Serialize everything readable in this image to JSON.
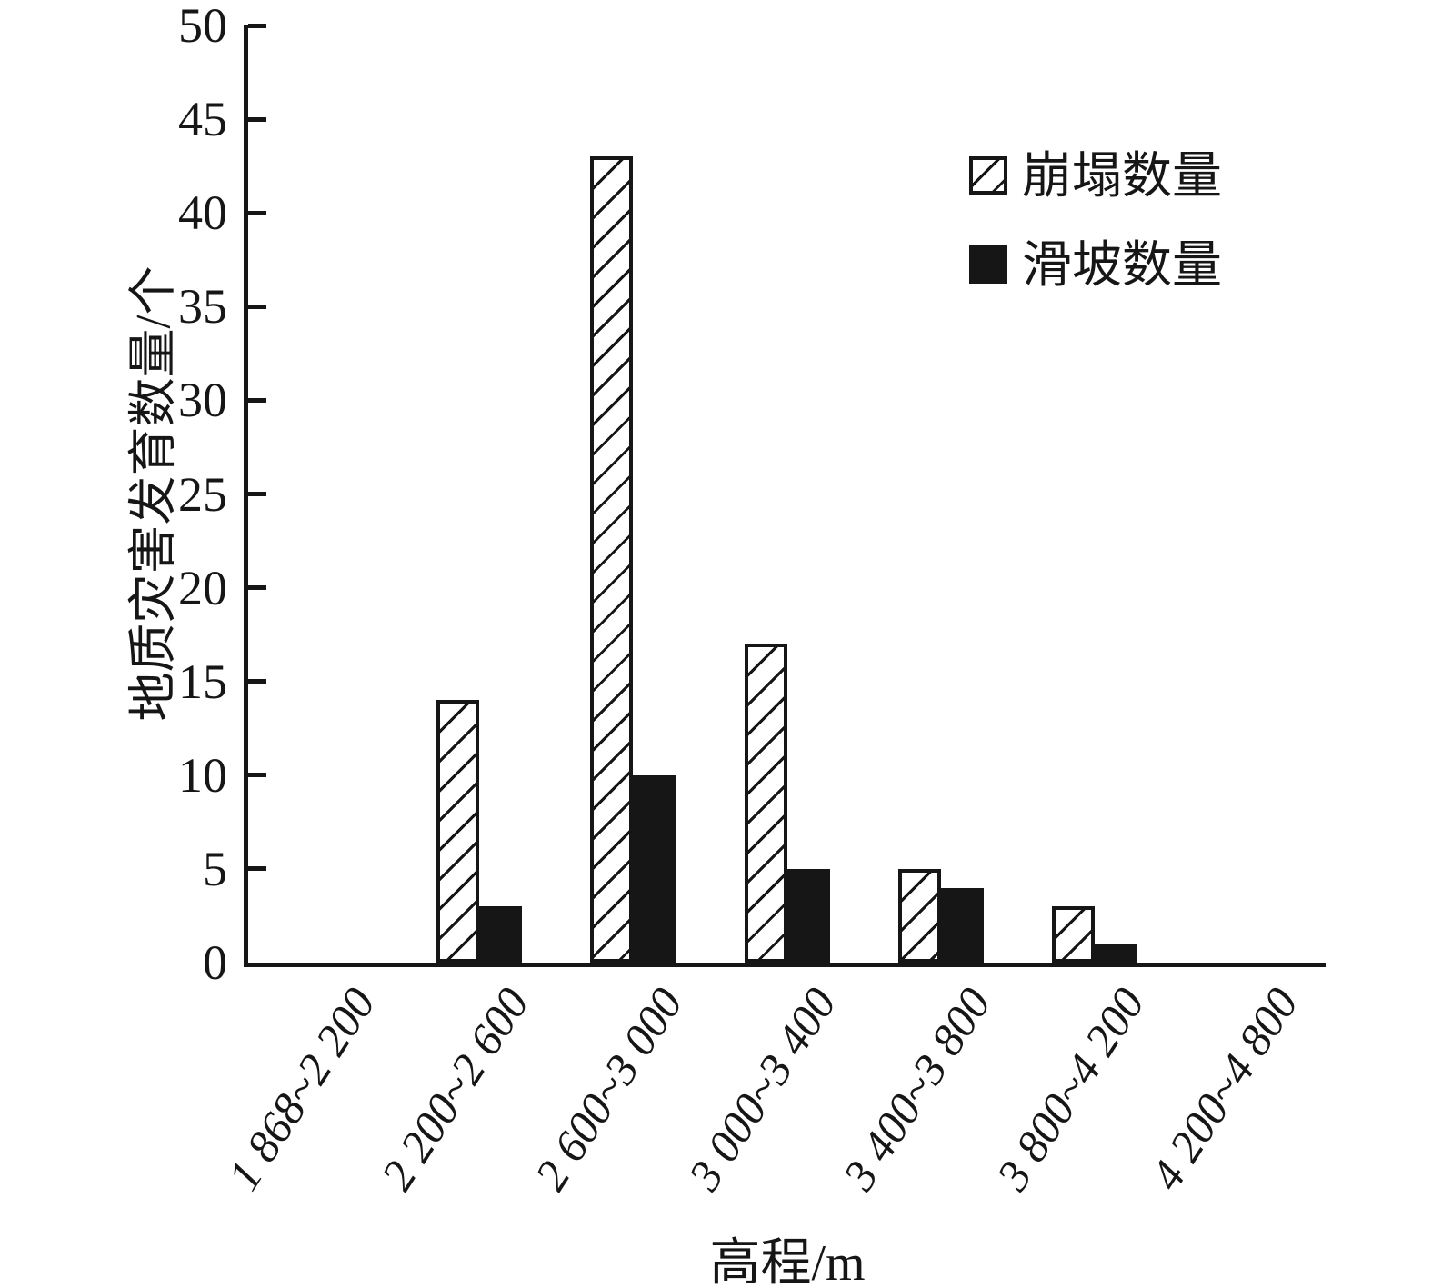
{
  "chart_data": {
    "type": "bar",
    "title": "",
    "categories": [
      "1 868~2 200",
      "2 200~2 600",
      "2 600~3 000",
      "3 000~3 400",
      "3 400~3 800",
      "3 800~4 200",
      "4 200~4 800"
    ],
    "series": [
      {
        "name": "崩塌数量",
        "style": "hatched",
        "values": [
          0,
          14,
          43,
          17,
          5,
          3,
          0
        ]
      },
      {
        "name": "滑坡数量",
        "style": "solid",
        "values": [
          0,
          3,
          10,
          5,
          4,
          1,
          0
        ]
      }
    ],
    "xlabel": "高程/m",
    "ylabel": "地质灾害发育数量/个",
    "ylim": [
      0,
      50
    ],
    "ytick_step": 5,
    "yticks": [
      0,
      5,
      10,
      15,
      20,
      25,
      30,
      35,
      40,
      45,
      50
    ],
    "grid": false,
    "legend_position": "upper right"
  },
  "colors": {
    "ink": "#161616",
    "background": "#ffffff",
    "hatched_bar_fill": "#ffffff",
    "solid_bar_fill": "#161616"
  }
}
